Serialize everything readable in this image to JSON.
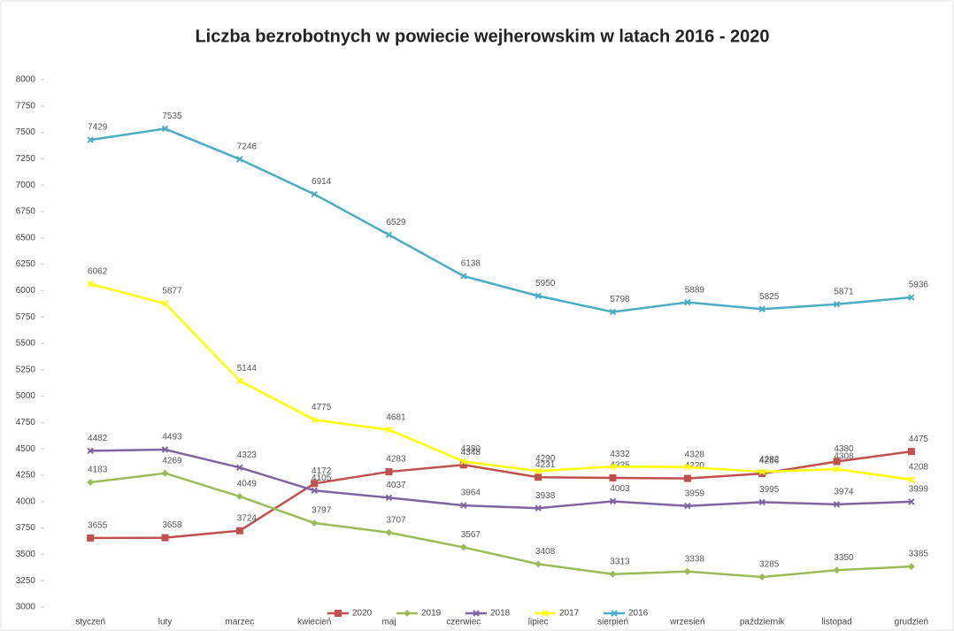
{
  "chart_data": {
    "type": "line",
    "title": "Liczba bezrobotnych w powiecie wejherowskim w latach 2016 - 2020",
    "categories": [
      "styczeń",
      "luty",
      "marzec",
      "kwiecień",
      "maj",
      "czerwiec",
      "lipiec",
      "sierpień",
      "wrzesień",
      "październik",
      "listopad",
      "grudzień"
    ],
    "series": [
      {
        "name": "2020",
        "color": "#c0504d",
        "marker": "square",
        "values": [
          3655,
          3658,
          3724,
          4172,
          4283,
          4348,
          4231,
          4225,
          4220,
          4266,
          4380,
          4475
        ]
      },
      {
        "name": "2019",
        "color": "#9bbb59",
        "marker": "diamond",
        "values": [
          4183,
          4269,
          4049,
          3797,
          3707,
          3567,
          3408,
          3313,
          3338,
          3285,
          3350,
          3385
        ]
      },
      {
        "name": "2018",
        "color": "#8064a2",
        "marker": "cross",
        "values": [
          4482,
          4493,
          4323,
          4105,
          4037,
          3964,
          3938,
          4003,
          3959,
          3995,
          3974,
          3999
        ]
      },
      {
        "name": "2017",
        "color": "#ffff00",
        "marker": "cross",
        "values": [
          6062,
          5877,
          5144,
          4775,
          4681,
          4380,
          4290,
          4332,
          4328,
          4282,
          4308,
          4208
        ]
      },
      {
        "name": "2016",
        "color": "#4bacc6",
        "marker": "cross",
        "values": [
          7429,
          7535,
          7246,
          6914,
          6529,
          6138,
          5950,
          5798,
          5889,
          5825,
          5871,
          5936
        ]
      }
    ],
    "ylim": [
      3000,
      8000
    ],
    "yticks": [
      3000,
      3250,
      3500,
      3750,
      4000,
      4250,
      4500,
      4750,
      5000,
      5250,
      5500,
      5750,
      6000,
      6250,
      6500,
      6750,
      7000,
      7250,
      7500,
      7750,
      8000
    ],
    "grid": false,
    "legend": "bottom"
  }
}
